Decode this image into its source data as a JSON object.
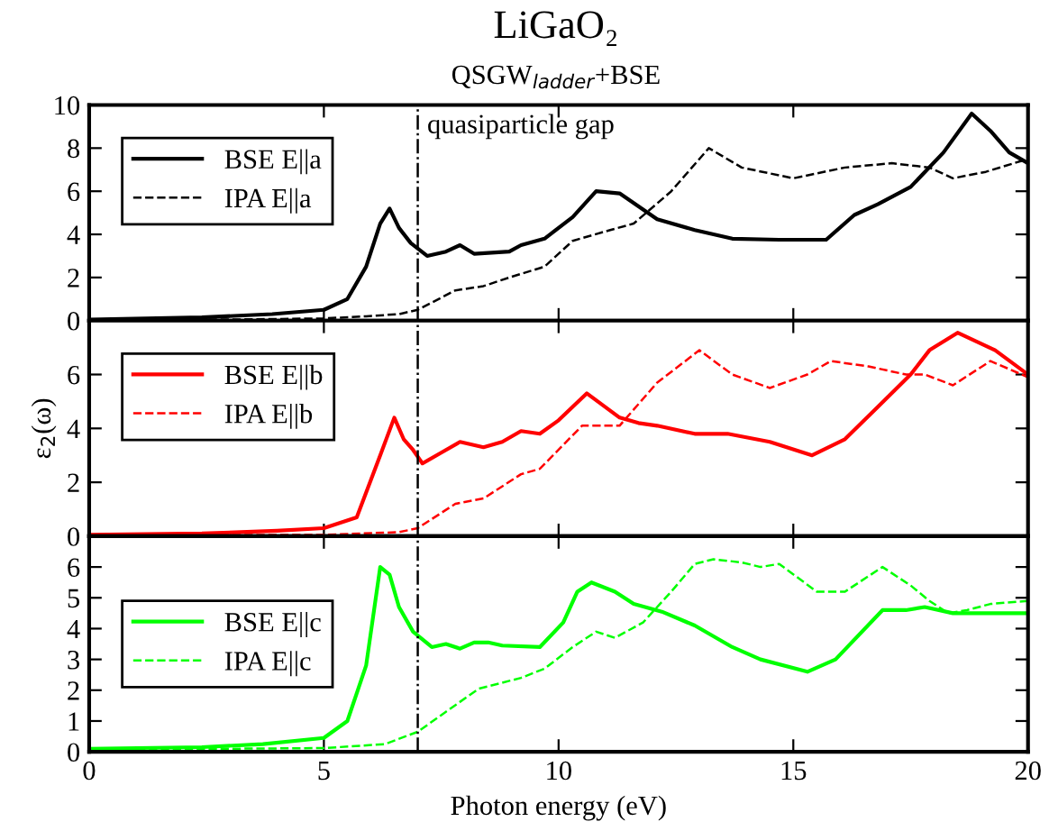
{
  "chart_data": [
    {
      "type": "line",
      "title": "LiGaO₂",
      "subtitle": "QSGW$_{ladder}$+BSE",
      "xlim": [
        0,
        20
      ],
      "xticks": [
        0,
        5,
        10,
        15,
        20
      ],
      "ylim": [
        0,
        10
      ],
      "yticks": [
        0,
        2,
        4,
        6,
        8,
        10
      ],
      "tick_labels": "y",
      "grid": false,
      "legend": "top left",
      "marker": "none",
      "ref_lines": [
        {
          "axis": "x",
          "value": 7,
          "label": "quasiparticle gap",
          "color": "#000000",
          "line_style": "dashdot"
        }
      ],
      "series": [
        {
          "name": "BSE E||a",
          "color": "#000000",
          "line_style": "solid",
          "x": [
            0,
            2.4,
            3.9,
            5.0,
            5.5,
            5.9,
            6.2,
            6.4,
            6.6,
            6.85,
            7.2,
            7.6,
            7.9,
            8.2,
            8.95,
            9.2,
            9.7,
            10.3,
            10.8,
            11.3,
            12.1,
            12.9,
            13.7,
            14.7,
            15.7,
            16.3,
            16.8,
            17.5,
            18.2,
            18.8,
            19.2,
            19.6,
            20
          ],
          "values": [
            0.05,
            0.15,
            0.3,
            0.5,
            1.0,
            2.5,
            4.5,
            5.2,
            4.3,
            3.6,
            3.0,
            3.2,
            3.5,
            3.1,
            3.2,
            3.5,
            3.8,
            4.8,
            6.0,
            5.9,
            4.7,
            4.2,
            3.8,
            3.75,
            3.75,
            4.9,
            5.4,
            6.2,
            7.8,
            9.6,
            8.8,
            7.8,
            7.3
          ]
        },
        {
          "name": "IPA E||a",
          "color": "#000000",
          "line_style": "dashed",
          "x": [
            0,
            3,
            5,
            5.9,
            6.6,
            7.0,
            7.8,
            8.4,
            8.95,
            9.7,
            10.3,
            11.1,
            11.6,
            12.4,
            13.2,
            13.9,
            15.0,
            16.1,
            17.1,
            17.9,
            18.4,
            19.1,
            20
          ],
          "values": [
            0.05,
            0.05,
            0.1,
            0.2,
            0.3,
            0.5,
            1.4,
            1.6,
            2.0,
            2.5,
            3.7,
            4.2,
            4.5,
            6.0,
            8.0,
            7.1,
            6.6,
            7.1,
            7.3,
            7.1,
            6.6,
            6.9,
            7.5
          ]
        }
      ]
    },
    {
      "type": "line",
      "ylabel": "ε$_{2}$(ω)",
      "xlim": [
        0,
        20
      ],
      "xticks": [
        0,
        5,
        10,
        15,
        20
      ],
      "ylim": [
        0,
        8
      ],
      "yticks": [
        0,
        2,
        4,
        6,
        {
          "value": 8,
          "label": null
        }
      ],
      "tick_labels": "y",
      "grid": false,
      "legend": "top left",
      "marker": "none",
      "ref_lines": [
        {
          "axis": "x",
          "value": 7,
          "color": "#000000",
          "line_style": "dashdot"
        }
      ],
      "series": [
        {
          "name": "BSE E||b",
          "color": "#ff0000",
          "line_style": "solid",
          "x": [
            0,
            2.4,
            4.0,
            5.0,
            5.7,
            6.2,
            6.5,
            6.7,
            6.9,
            7.1,
            7.5,
            7.9,
            8.4,
            8.8,
            9.2,
            9.6,
            10.0,
            10.6,
            11.3,
            11.7,
            12.1,
            12.9,
            13.6,
            14.5,
            15.4,
            16.1,
            16.8,
            17.5,
            17.9,
            18.5,
            19.3,
            20
          ],
          "values": [
            0.05,
            0.1,
            0.2,
            0.3,
            0.7,
            3.0,
            4.4,
            3.6,
            3.2,
            2.7,
            3.1,
            3.5,
            3.3,
            3.5,
            3.9,
            3.8,
            4.3,
            5.3,
            4.4,
            4.2,
            4.1,
            3.8,
            3.8,
            3.5,
            3.0,
            3.6,
            4.8,
            6.0,
            6.9,
            7.55,
            6.9,
            6.0
          ]
        },
        {
          "name": "IPA E||b",
          "color": "#ff0000",
          "line_style": "dashed",
          "x": [
            0,
            3,
            5,
            6.6,
            7.0,
            7.8,
            8.4,
            9.2,
            9.6,
            10.5,
            11.3,
            12.1,
            13.0,
            13.7,
            14.5,
            15.3,
            15.8,
            16.6,
            17.4,
            17.8,
            18.4,
            19.2,
            20
          ],
          "values": [
            0.05,
            0.05,
            0.05,
            0.15,
            0.3,
            1.2,
            1.4,
            2.3,
            2.5,
            4.1,
            4.1,
            5.7,
            6.9,
            6.0,
            5.5,
            6.0,
            6.5,
            6.3,
            6.0,
            6.0,
            5.6,
            6.5,
            5.9
          ]
        }
      ]
    },
    {
      "type": "line",
      "xlabel": "Photon energy (eV)",
      "xlim": [
        0,
        20
      ],
      "xticks": [
        0,
        5,
        10,
        15,
        20
      ],
      "ylim": [
        0,
        7
      ],
      "yticks": [
        0,
        1,
        2,
        3,
        4,
        5,
        6,
        {
          "value": 7,
          "label": null
        }
      ],
      "grid": false,
      "legend": "left",
      "marker": "none",
      "ref_lines": [
        {
          "axis": "x",
          "value": 7,
          "color": "#000000",
          "line_style": "dashdot"
        }
      ],
      "series": [
        {
          "name": "BSE E||c",
          "color": "#00ff00",
          "line_style": "solid",
          "x": [
            0,
            2.4,
            3.7,
            5.0,
            5.5,
            5.9,
            6.2,
            6.4,
            6.6,
            6.9,
            7.3,
            7.6,
            7.9,
            8.2,
            8.5,
            8.8,
            9.6,
            10.1,
            10.4,
            10.7,
            11.2,
            11.6,
            12.2,
            12.9,
            13.7,
            14.3,
            15.3,
            15.9,
            16.9,
            17.4,
            17.8,
            18.4,
            20
          ],
          "values": [
            0.1,
            0.15,
            0.25,
            0.45,
            1.0,
            2.8,
            6.0,
            5.75,
            4.7,
            3.9,
            3.4,
            3.5,
            3.35,
            3.55,
            3.55,
            3.45,
            3.4,
            4.2,
            5.2,
            5.5,
            5.2,
            4.8,
            4.55,
            4.1,
            3.4,
            3.0,
            2.6,
            3.0,
            4.6,
            4.6,
            4.7,
            4.5,
            4.5
          ]
        },
        {
          "name": "IPA E||c",
          "color": "#00ff00",
          "line_style": "dashed",
          "x": [
            0,
            3,
            5,
            6.3,
            7.0,
            7.6,
            8.3,
            9.2,
            9.7,
            10.3,
            10.8,
            11.2,
            11.8,
            12.4,
            12.9,
            13.3,
            13.9,
            14.3,
            14.7,
            15.5,
            16.1,
            16.9,
            17.5,
            17.9,
            18.3,
            18.7,
            19.2,
            20
          ],
          "values": [
            0.1,
            0.1,
            0.12,
            0.25,
            0.65,
            1.3,
            2.05,
            2.4,
            2.7,
            3.4,
            3.9,
            3.7,
            4.2,
            5.2,
            6.1,
            6.25,
            6.15,
            6.0,
            6.1,
            5.2,
            5.2,
            6.0,
            5.4,
            4.9,
            4.5,
            4.6,
            4.8,
            4.9
          ]
        }
      ]
    }
  ]
}
